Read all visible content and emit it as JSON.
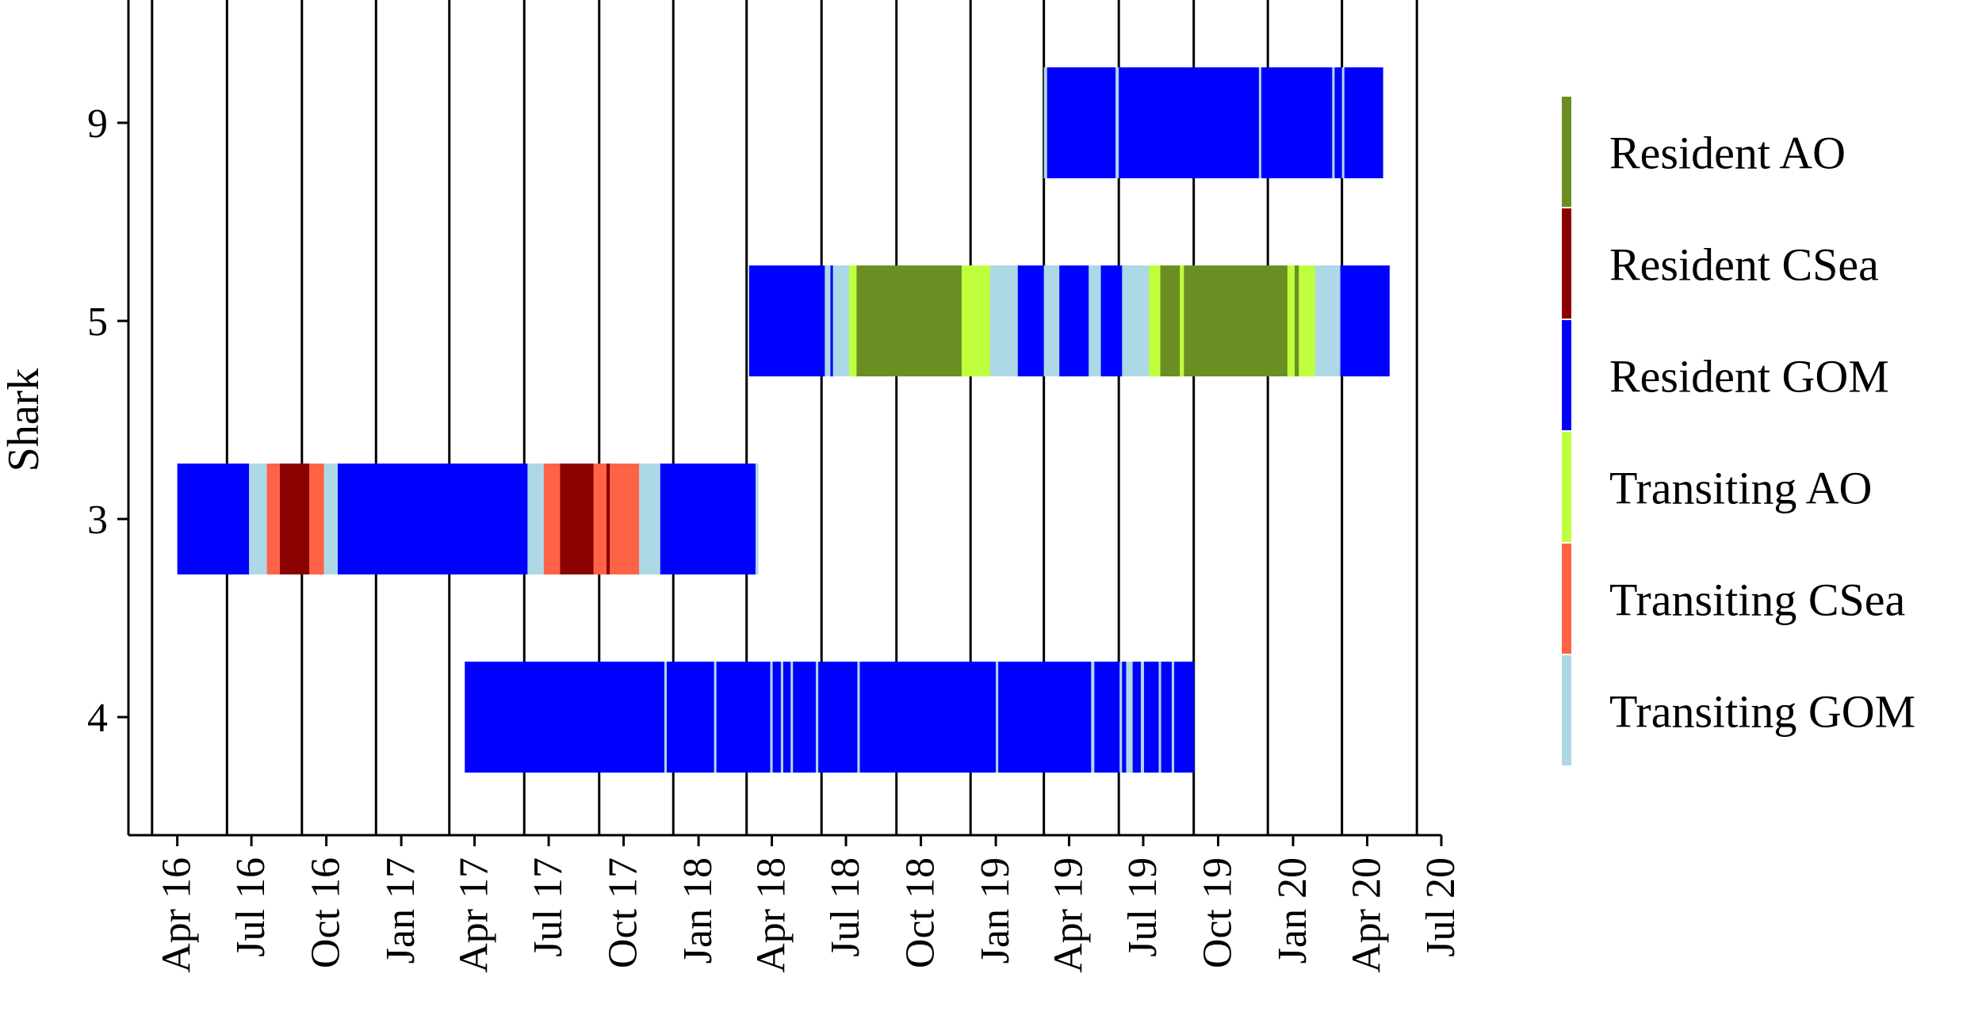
{
  "chart_data": {
    "type": "gantt",
    "ylabel": "Shark",
    "x_ticks": [
      "Apr 16",
      "Jul 16",
      "Oct 16",
      "Jan 17",
      "Apr 17",
      "Jul 17",
      "Oct 17",
      "Jan 18",
      "Apr 18",
      "Jul 18",
      "Oct 18",
      "Jan 19",
      "Apr 19",
      "Jul 19",
      "Oct 19",
      "Jan 20",
      "Apr 20",
      "Jul 20"
    ],
    "xlim": [
      "2016-02-01",
      "2020-07-01"
    ],
    "grid_months": [
      "2016-03-01",
      "2016-06-01",
      "2016-09-01",
      "2016-12-01",
      "2017-03-01",
      "2017-06-01",
      "2017-09-01",
      "2017-12-01",
      "2018-03-01",
      "2018-06-01",
      "2018-09-01",
      "2018-12-01",
      "2019-03-01",
      "2019-06-01",
      "2019-09-01",
      "2019-12-01",
      "2020-03-01",
      "2020-06-01"
    ],
    "legend_position": "right",
    "states": [
      {
        "name": "Resident AO",
        "color": "#6b8e23"
      },
      {
        "name": "Resident CSea",
        "color": "#8b0000"
      },
      {
        "name": "Resident GOM",
        "color": "#0000ff"
      },
      {
        "name": "Transiting AO",
        "color": "#c0ff3e"
      },
      {
        "name": "Transiting CSea",
        "color": "#ff6347"
      },
      {
        "name": "Transiting GOM",
        "color": "#add8e6"
      }
    ],
    "sharks": [
      {
        "id": "9",
        "segments": [
          {
            "start": "2019-03-01",
            "end": "2019-03-05",
            "state": "Transiting GOM"
          },
          {
            "start": "2019-03-05",
            "end": "2019-05-28",
            "state": "Resident GOM"
          },
          {
            "start": "2019-05-28",
            "end": "2019-06-01",
            "state": "Transiting GOM"
          },
          {
            "start": "2019-06-01",
            "end": "2019-11-20",
            "state": "Resident GOM"
          },
          {
            "start": "2019-11-20",
            "end": "2019-11-23",
            "state": "Transiting GOM"
          },
          {
            "start": "2019-11-23",
            "end": "2020-02-18",
            "state": "Resident GOM"
          },
          {
            "start": "2020-02-18",
            "end": "2020-02-21",
            "state": "Transiting GOM"
          },
          {
            "start": "2020-02-21",
            "end": "2020-03-01",
            "state": "Resident GOM"
          },
          {
            "start": "2020-03-01",
            "end": "2020-03-04",
            "state": "Transiting GOM"
          },
          {
            "start": "2020-03-04",
            "end": "2020-04-20",
            "state": "Resident GOM"
          }
        ]
      },
      {
        "id": "5",
        "segments": [
          {
            "start": "2018-03-04",
            "end": "2018-06-05",
            "state": "Resident GOM"
          },
          {
            "start": "2018-06-05",
            "end": "2018-06-12",
            "state": "Transiting GOM"
          },
          {
            "start": "2018-06-12",
            "end": "2018-06-15",
            "state": "Resident GOM"
          },
          {
            "start": "2018-06-15",
            "end": "2018-07-05",
            "state": "Transiting GOM"
          },
          {
            "start": "2018-07-05",
            "end": "2018-07-14",
            "state": "Transiting AO"
          },
          {
            "start": "2018-07-14",
            "end": "2018-11-20",
            "state": "Resident AO"
          },
          {
            "start": "2018-11-20",
            "end": "2018-12-25",
            "state": "Transiting AO"
          },
          {
            "start": "2018-12-25",
            "end": "2019-01-28",
            "state": "Transiting GOM"
          },
          {
            "start": "2019-01-28",
            "end": "2019-03-01",
            "state": "Resident GOM"
          },
          {
            "start": "2019-03-01",
            "end": "2019-03-20",
            "state": "Transiting GOM"
          },
          {
            "start": "2019-03-20",
            "end": "2019-04-25",
            "state": "Resident GOM"
          },
          {
            "start": "2019-04-25",
            "end": "2019-05-10",
            "state": "Transiting GOM"
          },
          {
            "start": "2019-05-10",
            "end": "2019-06-05",
            "state": "Resident GOM"
          },
          {
            "start": "2019-06-05",
            "end": "2019-07-08",
            "state": "Transiting GOM"
          },
          {
            "start": "2019-07-08",
            "end": "2019-07-22",
            "state": "Transiting AO"
          },
          {
            "start": "2019-07-22",
            "end": "2019-08-15",
            "state": "Resident AO"
          },
          {
            "start": "2019-08-15",
            "end": "2019-08-20",
            "state": "Transiting AO"
          },
          {
            "start": "2019-08-20",
            "end": "2019-12-25",
            "state": "Resident AO"
          },
          {
            "start": "2019-12-25",
            "end": "2020-01-03",
            "state": "Transiting AO"
          },
          {
            "start": "2020-01-03",
            "end": "2020-01-08",
            "state": "Resident AO"
          },
          {
            "start": "2020-01-08",
            "end": "2020-01-28",
            "state": "Transiting AO"
          },
          {
            "start": "2020-01-28",
            "end": "2020-02-28",
            "state": "Transiting GOM"
          },
          {
            "start": "2020-02-28",
            "end": "2020-04-28",
            "state": "Resident GOM"
          }
        ]
      },
      {
        "id": "3",
        "segments": [
          {
            "start": "2016-04-01",
            "end": "2016-06-28",
            "state": "Resident GOM"
          },
          {
            "start": "2016-06-28",
            "end": "2016-07-20",
            "state": "Transiting GOM"
          },
          {
            "start": "2016-07-20",
            "end": "2016-08-05",
            "state": "Transiting CSea"
          },
          {
            "start": "2016-08-05",
            "end": "2016-09-10",
            "state": "Resident CSea"
          },
          {
            "start": "2016-09-10",
            "end": "2016-09-28",
            "state": "Transiting CSea"
          },
          {
            "start": "2016-09-28",
            "end": "2016-10-15",
            "state": "Transiting GOM"
          },
          {
            "start": "2016-10-15",
            "end": "2017-06-05",
            "state": "Resident GOM"
          },
          {
            "start": "2017-06-05",
            "end": "2017-06-25",
            "state": "Transiting GOM"
          },
          {
            "start": "2017-06-25",
            "end": "2017-07-15",
            "state": "Transiting CSea"
          },
          {
            "start": "2017-07-15",
            "end": "2017-08-25",
            "state": "Resident CSea"
          },
          {
            "start": "2017-08-25",
            "end": "2017-09-10",
            "state": "Transiting CSea"
          },
          {
            "start": "2017-09-10",
            "end": "2017-09-14",
            "state": "Resident CSea"
          },
          {
            "start": "2017-09-14",
            "end": "2017-10-20",
            "state": "Transiting CSea"
          },
          {
            "start": "2017-10-20",
            "end": "2017-11-15",
            "state": "Transiting GOM"
          },
          {
            "start": "2017-11-15",
            "end": "2018-03-12",
            "state": "Resident GOM"
          },
          {
            "start": "2018-03-12",
            "end": "2018-03-15",
            "state": "Transiting GOM"
          }
        ]
      },
      {
        "id": "4",
        "segments": [
          {
            "start": "2017-03-20",
            "end": "2017-11-20",
            "state": "Resident GOM"
          },
          {
            "start": "2017-11-20",
            "end": "2017-11-23",
            "state": "Transiting GOM"
          },
          {
            "start": "2017-11-23",
            "end": "2018-01-20",
            "state": "Resident GOM"
          },
          {
            "start": "2018-01-20",
            "end": "2018-01-23",
            "state": "Transiting GOM"
          },
          {
            "start": "2018-01-23",
            "end": "2018-03-30",
            "state": "Resident GOM"
          },
          {
            "start": "2018-03-30",
            "end": "2018-04-02",
            "state": "Transiting GOM"
          },
          {
            "start": "2018-04-02",
            "end": "2018-04-12",
            "state": "Resident GOM"
          },
          {
            "start": "2018-04-12",
            "end": "2018-04-15",
            "state": "Transiting GOM"
          },
          {
            "start": "2018-04-15",
            "end": "2018-04-24",
            "state": "Resident GOM"
          },
          {
            "start": "2018-04-24",
            "end": "2018-04-27",
            "state": "Transiting GOM"
          },
          {
            "start": "2018-04-27",
            "end": "2018-05-25",
            "state": "Resident GOM"
          },
          {
            "start": "2018-05-25",
            "end": "2018-05-28",
            "state": "Transiting GOM"
          },
          {
            "start": "2018-05-28",
            "end": "2018-07-15",
            "state": "Resident GOM"
          },
          {
            "start": "2018-07-15",
            "end": "2018-07-18",
            "state": "Transiting GOM"
          },
          {
            "start": "2018-07-18",
            "end": "2019-01-01",
            "state": "Resident GOM"
          },
          {
            "start": "2019-01-01",
            "end": "2019-01-04",
            "state": "Transiting GOM"
          },
          {
            "start": "2019-01-04",
            "end": "2019-04-28",
            "state": "Resident GOM"
          },
          {
            "start": "2019-04-28",
            "end": "2019-05-02",
            "state": "Transiting GOM"
          },
          {
            "start": "2019-05-02",
            "end": "2019-06-02",
            "state": "Resident GOM"
          },
          {
            "start": "2019-06-02",
            "end": "2019-06-05",
            "state": "Transiting GOM"
          },
          {
            "start": "2019-06-05",
            "end": "2019-06-10",
            "state": "Resident GOM"
          },
          {
            "start": "2019-06-10",
            "end": "2019-06-18",
            "state": "Transiting GOM"
          },
          {
            "start": "2019-06-18",
            "end": "2019-06-28",
            "state": "Resident GOM"
          },
          {
            "start": "2019-06-28",
            "end": "2019-07-02",
            "state": "Transiting GOM"
          },
          {
            "start": "2019-07-02",
            "end": "2019-07-20",
            "state": "Resident GOM"
          },
          {
            "start": "2019-07-20",
            "end": "2019-07-23",
            "state": "Transiting GOM"
          },
          {
            "start": "2019-07-23",
            "end": "2019-08-05",
            "state": "Resident GOM"
          },
          {
            "start": "2019-08-05",
            "end": "2019-08-08",
            "state": "Transiting GOM"
          },
          {
            "start": "2019-08-08",
            "end": "2019-09-01",
            "state": "Resident GOM"
          }
        ]
      }
    ]
  }
}
